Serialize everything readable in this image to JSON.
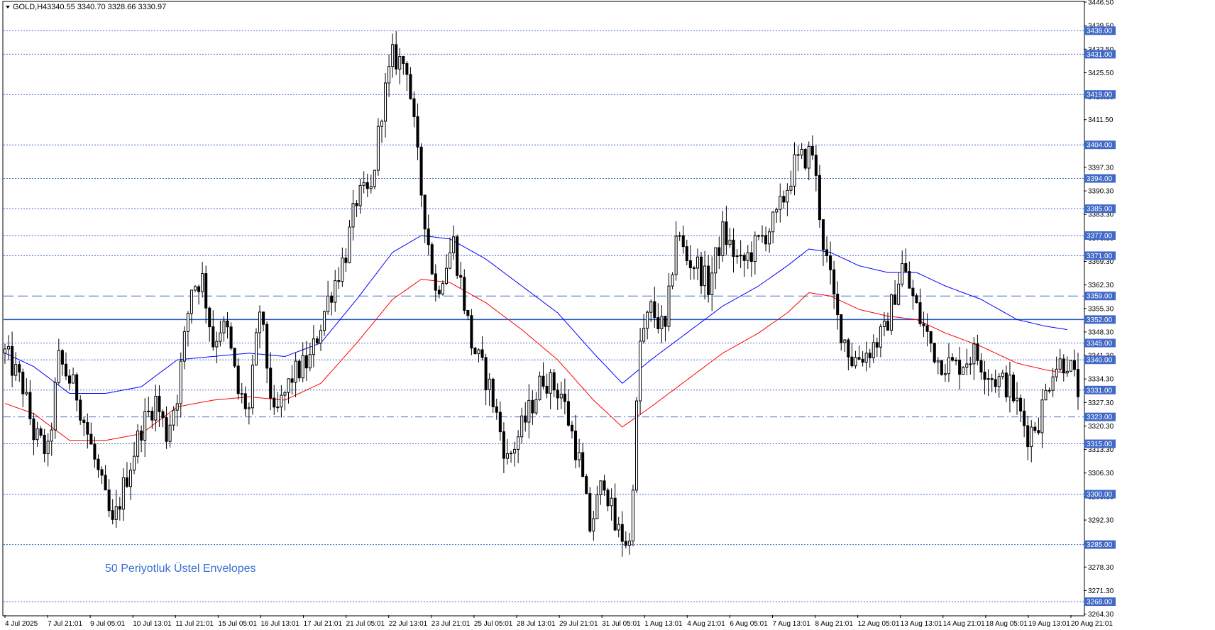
{
  "header": {
    "symbol": "GOLD,H4",
    "ohlc": "3340.55 3340.70 3328.66 3330.97"
  },
  "annotation": "50 Periyotluk Üstel Envelopes",
  "colors": {
    "candle_body": "#000000",
    "bull_fill": "#ffffff",
    "upper_envelope": "#0000ff",
    "lower_envelope": "#ff0000",
    "level_line": "#4169c8",
    "level_label_bg": "#4169c8",
    "support_line": "#1f55c8",
    "axis_text": "#000000"
  },
  "chart_data": {
    "type": "candlestick",
    "timeframe": "H4",
    "ylim": [
      3264.0,
      3446.5
    ],
    "y_ticks": [
      "3446.50",
      "3439.50",
      "3432.50",
      "3425.50",
      "3418.30",
      "3411.50",
      "3404.30",
      "3397.30",
      "3390.30",
      "3383.30",
      "3376.30",
      "3369.30",
      "3362.30",
      "3355.30",
      "3348.30",
      "3341.30",
      "3334.30",
      "3327.30",
      "3320.30",
      "3313.30",
      "3306.30",
      "3299.30",
      "3292.30",
      "3285.30",
      "3278.30",
      "3271.30",
      "3264.30"
    ],
    "x_ticks": [
      "4 Jul 2025",
      "7 Jul 21:01",
      "9 Jul 05:01",
      "10 Jul 13:01",
      "11 Jul 21:01",
      "15 Jul 05:01",
      "16 Jul 13:01",
      "17 Jul 21:01",
      "21 Jul 05:01",
      "22 Jul 13:01",
      "23 Jul 21:01",
      "25 Jul 05:01",
      "28 Jul 13:01",
      "29 Jul 21:01",
      "31 Jul 05:01",
      "1 Aug 13:01",
      "4 Aug 21:01",
      "6 Aug 05:01",
      "7 Aug 13:01",
      "8 Aug 21:01",
      "12 Aug 05:01",
      "13 Aug 13:01",
      "14 Aug 21:01",
      "18 Aug 05:01",
      "19 Aug 13:01",
      "20 Aug 21:01"
    ],
    "levels": [
      {
        "value": 3438.0,
        "label": "3438.00",
        "style": "dotted"
      },
      {
        "value": 3431.0,
        "label": "3431.00",
        "style": "dotted"
      },
      {
        "value": 3419.0,
        "label": "3419.00",
        "style": "dotted"
      },
      {
        "value": 3404.0,
        "label": "3404.00",
        "style": "dotted"
      },
      {
        "value": 3394.0,
        "label": "3394.00",
        "style": "dotted"
      },
      {
        "value": 3385.0,
        "label": "3385.00",
        "style": "dotted"
      },
      {
        "value": 3377.0,
        "label": "3377.00",
        "style": "dotted"
      },
      {
        "value": 3371.0,
        "label": "3371.00",
        "style": "dotted"
      },
      {
        "value": 3359.0,
        "label": "3359.00",
        "style": "dashed"
      },
      {
        "value": 3352.0,
        "label": "3352.00",
        "style": "solid"
      },
      {
        "value": 3345.0,
        "label": "3345.00",
        "style": "dotted"
      },
      {
        "value": 3340.0,
        "label": "3340.00",
        "style": "dotted"
      },
      {
        "value": 3331.0,
        "label": "3331.00",
        "style": "dotted"
      },
      {
        "value": 3323.0,
        "label": "3323.00",
        "style": "dashdot"
      },
      {
        "value": 3315.0,
        "label": "3315.00",
        "style": "dotted"
      },
      {
        "value": 3300.0,
        "label": "3300.00",
        "style": "dotted"
      },
      {
        "value": 3285.0,
        "label": "3285.00",
        "style": "dotted"
      },
      {
        "value": 3268.0,
        "label": "3268.00",
        "style": "dotted"
      }
    ],
    "candle_count": 300,
    "close_anchors": [
      [
        0,
        3342
      ],
      [
        5,
        3332
      ],
      [
        8,
        3318
      ],
      [
        12,
        3312
      ],
      [
        15,
        3340
      ],
      [
        20,
        3330
      ],
      [
        25,
        3310
      ],
      [
        30,
        3290
      ],
      [
        33,
        3302
      ],
      [
        38,
        3320
      ],
      [
        42,
        3328
      ],
      [
        45,
        3318
      ],
      [
        48,
        3330
      ],
      [
        52,
        3362
      ],
      [
        55,
        3364
      ],
      [
        58,
        3345
      ],
      [
        60,
        3350
      ],
      [
        62,
        3348
      ],
      [
        65,
        3330
      ],
      [
        68,
        3325
      ],
      [
        71,
        3355
      ],
      [
        75,
        3322
      ],
      [
        80,
        3335
      ],
      [
        85,
        3340
      ],
      [
        90,
        3358
      ],
      [
        95,
        3372
      ],
      [
        98,
        3388
      ],
      [
        102,
        3390
      ],
      [
        105,
        3415
      ],
      [
        108,
        3430
      ],
      [
        112,
        3428
      ],
      [
        116,
        3390
      ],
      [
        120,
        3360
      ],
      [
        125,
        3375
      ],
      [
        130,
        3345
      ],
      [
        135,
        3332
      ],
      [
        140,
        3310
      ],
      [
        145,
        3322
      ],
      [
        150,
        3335
      ],
      [
        155,
        3330
      ],
      [
        160,
        3310
      ],
      [
        163,
        3290
      ],
      [
        167,
        3305
      ],
      [
        170,
        3290
      ],
      [
        174,
        3285
      ],
      [
        177,
        3345
      ],
      [
        180,
        3355
      ],
      [
        184,
        3348
      ],
      [
        187,
        3378
      ],
      [
        190,
        3370
      ],
      [
        193,
        3368
      ],
      [
        196,
        3362
      ],
      [
        200,
        3378
      ],
      [
        205,
        3368
      ],
      [
        210,
        3375
      ],
      [
        215,
        3382
      ],
      [
        220,
        3398
      ],
      [
        225,
        3402
      ],
      [
        228,
        3375
      ],
      [
        232,
        3352
      ],
      [
        236,
        3340
      ],
      [
        240,
        3342
      ],
      [
        245,
        3348
      ],
      [
        250,
        3368
      ],
      [
        255,
        3352
      ],
      [
        260,
        3340
      ],
      [
        265,
        3338
      ],
      [
        270,
        3342
      ],
      [
        275,
        3335
      ],
      [
        280,
        3332
      ],
      [
        285,
        3318
      ],
      [
        288,
        3322
      ],
      [
        292,
        3338
      ],
      [
        296,
        3340
      ],
      [
        299,
        3331
      ]
    ],
    "upper_envelope_anchors": [
      [
        0,
        3342
      ],
      [
        8,
        3338
      ],
      [
        18,
        3330
      ],
      [
        28,
        3330
      ],
      [
        38,
        3332
      ],
      [
        48,
        3340
      ],
      [
        58,
        3341
      ],
      [
        68,
        3342
      ],
      [
        78,
        3341
      ],
      [
        88,
        3345
      ],
      [
        98,
        3358
      ],
      [
        108,
        3372
      ],
      [
        116,
        3377
      ],
      [
        124,
        3376
      ],
      [
        134,
        3370
      ],
      [
        144,
        3362
      ],
      [
        154,
        3354
      ],
      [
        164,
        3342
      ],
      [
        172,
        3333
      ],
      [
        180,
        3340
      ],
      [
        190,
        3348
      ],
      [
        200,
        3356
      ],
      [
        210,
        3362
      ],
      [
        218,
        3368
      ],
      [
        224,
        3373
      ],
      [
        230,
        3372
      ],
      [
        238,
        3368
      ],
      [
        246,
        3366
      ],
      [
        254,
        3366
      ],
      [
        262,
        3362
      ],
      [
        272,
        3358
      ],
      [
        282,
        3352
      ],
      [
        290,
        3350
      ],
      [
        296,
        3349
      ]
    ],
    "lower_envelope_anchors": [
      [
        0,
        3327
      ],
      [
        8,
        3324
      ],
      [
        18,
        3316
      ],
      [
        28,
        3316
      ],
      [
        38,
        3318
      ],
      [
        48,
        3326
      ],
      [
        58,
        3328
      ],
      [
        68,
        3329
      ],
      [
        78,
        3328
      ],
      [
        88,
        3333
      ],
      [
        98,
        3345
      ],
      [
        108,
        3358
      ],
      [
        116,
        3364
      ],
      [
        124,
        3363
      ],
      [
        134,
        3357
      ],
      [
        144,
        3349
      ],
      [
        154,
        3340
      ],
      [
        164,
        3328
      ],
      [
        172,
        3320
      ],
      [
        180,
        3326
      ],
      [
        190,
        3334
      ],
      [
        200,
        3342
      ],
      [
        210,
        3348
      ],
      [
        218,
        3354
      ],
      [
        224,
        3360
      ],
      [
        230,
        3359
      ],
      [
        238,
        3355
      ],
      [
        246,
        3353
      ],
      [
        254,
        3352
      ],
      [
        262,
        3348
      ],
      [
        272,
        3344
      ],
      [
        282,
        3339
      ],
      [
        290,
        3337
      ],
      [
        296,
        3336
      ]
    ]
  }
}
